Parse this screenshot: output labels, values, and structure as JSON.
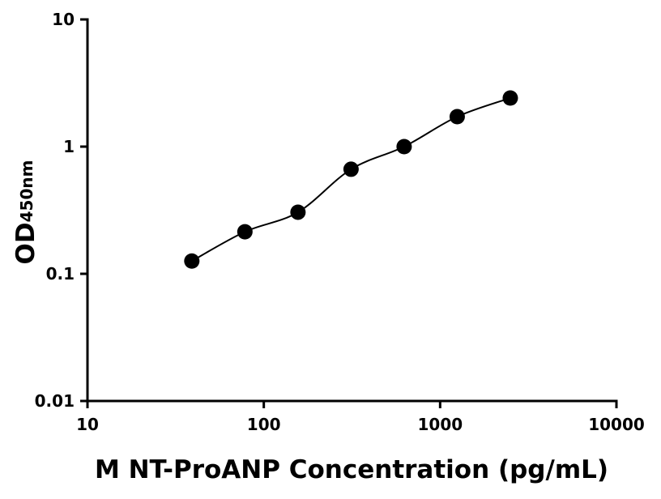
{
  "chart_data": {
    "type": "scatter",
    "x_label": "M NT-ProANP Concentration (pg/mL)",
    "y_label": "OD",
    "y_label_subscript": "450nm",
    "x": [
      39.06,
      78.13,
      156.25,
      312.5,
      625,
      1250,
      2500
    ],
    "series": [
      {
        "color": "#000000",
        "values": [
          0.126,
          0.214,
          0.305,
          0.664,
          1.0,
          1.72,
          2.41
        ]
      }
    ],
    "xlim": [
      10,
      10000
    ],
    "ylim": [
      0.01,
      10
    ],
    "xticks": [
      10,
      100,
      1000,
      10000
    ],
    "yticks": [
      0.01,
      0.1,
      1,
      10
    ],
    "xscale": "log",
    "yscale": "log",
    "fit_curve": true
  }
}
